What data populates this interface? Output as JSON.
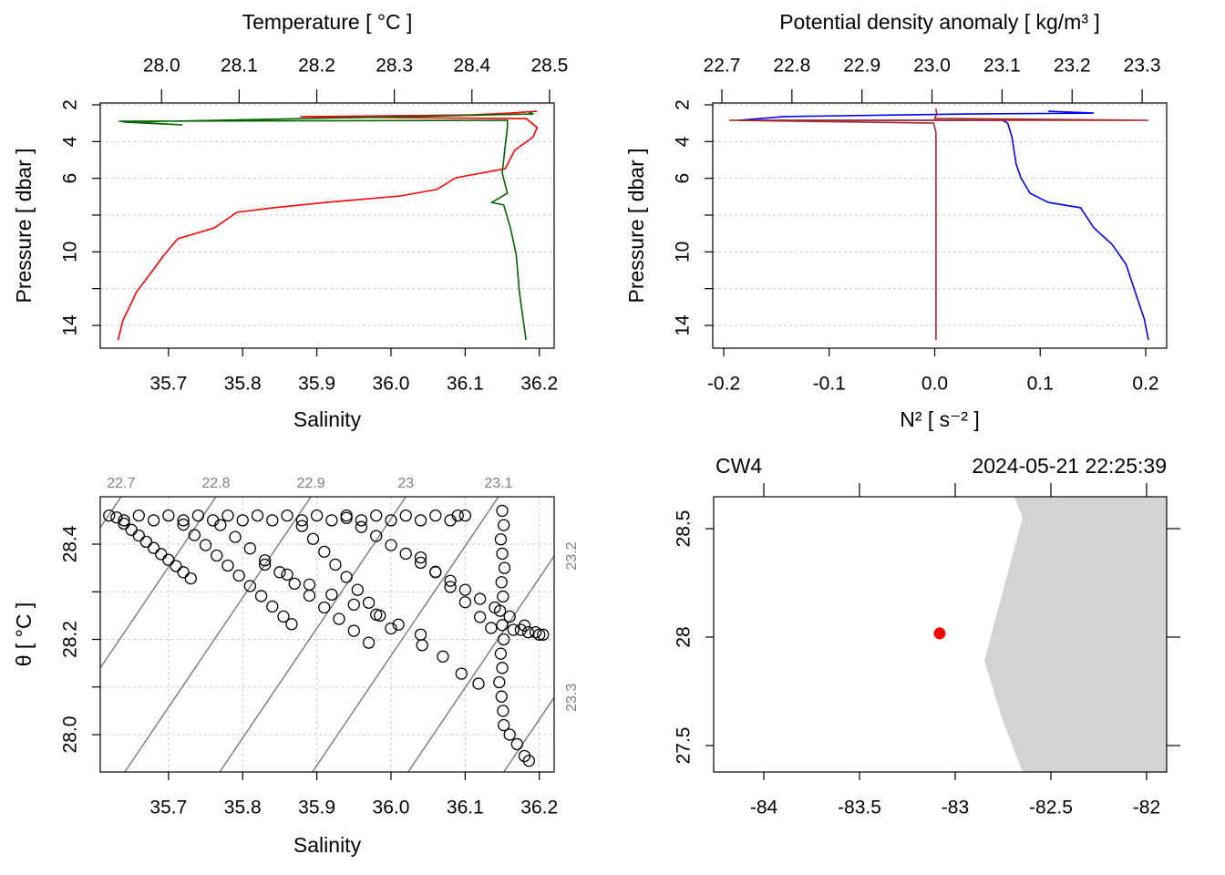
{
  "chart_data": [
    {
      "type": "profile",
      "x2label": "Temperature [ °C ]",
      "xlabel": "Salinity",
      "ylabel": "Pressure [ dbar ]",
      "ylim": [
        15.24,
        1.9
      ],
      "yticks": [
        2,
        4,
        6,
        10,
        14
      ],
      "yticks_minor": [
        8,
        12
      ],
      "x2lim": [
        27.921,
        28.506
      ],
      "x2ticks": [
        {
          "value": 28,
          "label": "28.0"
        },
        28.1,
        28.2,
        28.3,
        28.4,
        28.5
      ],
      "xlim": [
        35.608,
        36.22
      ],
      "xticks": [
        35.7,
        35.8,
        35.9,
        {
          "value": 36,
          "label": "36.0"
        },
        36.1,
        36.2
      ],
      "grid": true,
      "series": [
        {
          "axis": "x2",
          "color": "#ff0000",
          "pressure": [
            14.8,
            13.75,
            12.16,
            11.17,
            10.18,
            9.29,
            8.7,
            7.85,
            7.6,
            7.3,
            6.96,
            6.6,
            5.97,
            5.47,
            4.48,
            3.74,
            3.24,
            2.75,
            2.65,
            2.55,
            2.45,
            2.35
          ],
          "values": [
            27.944,
            27.95,
            27.968,
            27.986,
            28.003,
            28.021,
            28.068,
            28.097,
            28.144,
            28.214,
            28.308,
            28.355,
            28.379,
            28.443,
            28.455,
            28.479,
            28.484,
            28.47,
            28.179,
            28.4,
            28.449,
            28.484
          ]
        },
        {
          "axis": "x",
          "color": "#006400",
          "pressure": [
            14.79,
            12.17,
            10.18,
            8.69,
            7.45,
            7.31,
            6.81,
            5.72,
            4.23,
            3.24,
            2.84,
            2.89,
            3.09,
            2.94,
            2.5,
            2.4
          ],
          "values": [
            36.182,
            36.173,
            36.169,
            36.161,
            36.152,
            36.136,
            36.157,
            36.15,
            36.154,
            36.157,
            36.157,
            35.633,
            35.719,
            35.639,
            36.192,
            36.186
          ]
        }
      ]
    },
    {
      "type": "profile",
      "x2label": "Potential density anomaly [ kg/m³ ]",
      "xlabel": "N² [ s⁻² ]",
      "ylabel": "Pressure [ dbar ]",
      "ylim": [
        15.24,
        1.9
      ],
      "yticks": [
        2,
        4,
        6,
        10,
        14
      ],
      "yticks_minor": [
        8,
        12
      ],
      "x2lim": [
        22.687,
        23.335
      ],
      "x2ticks": [
        22.7,
        22.8,
        22.9,
        {
          "value": 23,
          "label": "23.0"
        },
        23.1,
        23.2,
        23.3
      ],
      "xlim": [
        -0.2104,
        0.2199
      ],
      "xticks": [
        -0.2,
        -0.1,
        {
          "value": 0,
          "label": "0.0"
        },
        0.1,
        0.2
      ],
      "grid": true,
      "series": [
        {
          "axis": "x2",
          "color": "#0000ff",
          "pressure": [
            14.79,
            13.65,
            12.17,
            10.68,
            9.59,
            8.69,
            7.6,
            7.31,
            6.81,
            5.97,
            5.22,
            3.73,
            2.99,
            2.84,
            2.84,
            2.64,
            2.5,
            2.45,
            2.35
          ],
          "values": [
            23.309,
            23.303,
            23.29,
            23.277,
            23.257,
            23.231,
            23.212,
            23.166,
            23.14,
            23.127,
            23.12,
            23.114,
            23.108,
            23.101,
            22.723,
            22.789,
            23.049,
            23.231,
            23.166
          ]
        },
        {
          "axis": "x",
          "color": "#a52a2a",
          "pressure": [
            14.79,
            3.5,
            2.99,
            2.84,
            2.84,
            2.74,
            2.5,
            2.2
          ],
          "values": [
            0.0012,
            0.0012,
            -0.001,
            -0.195,
            0.2026,
            0.0,
            0.002,
            0.001
          ]
        }
      ]
    },
    {
      "type": "ts",
      "xlabel": "Salinity",
      "ylabel": "θ [ °C ]",
      "xlim": [
        35.608,
        36.22
      ],
      "xticks": [
        35.7,
        35.8,
        35.9,
        {
          "value": 36,
          "label": "36.0"
        },
        36.1,
        36.2
      ],
      "ylim": [
        27.9215,
        28.4995
      ],
      "yticks": [
        {
          "value": 28,
          "label": "28.0"
        },
        28.2,
        28.4
      ],
      "yticks_minor": [
        28.1,
        28.3
      ],
      "grid": true,
      "isopycnals": [
        {
          "level": 22.7,
          "S": [
            35.608,
            35.636
          ],
          "theta": [
            28.4344,
            28.4995
          ]
        },
        {
          "level": 22.8,
          "S": [
            35.608,
            35.764
          ],
          "theta": [
            28.1397,
            28.4995
          ]
        },
        {
          "level": 22.9,
          "S": [
            35.641,
            35.892
          ],
          "theta": [
            27.9215,
            28.4995
          ]
        },
        {
          "level": 23,
          "S": [
            35.769,
            36.02
          ],
          "theta": [
            27.9215,
            28.4995
          ]
        },
        {
          "level": 23.1,
          "S": [
            35.894,
            36.145
          ],
          "theta": [
            27.9215,
            28.4995
          ]
        },
        {
          "level": 23.2,
          "S": [
            36.023,
            36.22
          ],
          "theta": [
            27.9215,
            28.375
          ]
        },
        {
          "level": 23.3,
          "S": [
            36.152,
            36.22
          ],
          "theta": [
            27.9215,
            28.078
          ]
        }
      ],
      "S": [
        35.62,
        35.64,
        35.66,
        35.68,
        35.7,
        35.72,
        35.74,
        35.76,
        35.78,
        35.8,
        35.82,
        35.84,
        35.86,
        35.88,
        35.9,
        35.92,
        35.94,
        35.96,
        35.98,
        36.0,
        36.02,
        36.04,
        36.06,
        36.08,
        36.09,
        36.1,
        35.63,
        35.64,
        35.65,
        35.66,
        35.67,
        35.68,
        35.69,
        35.7,
        35.71,
        35.72,
        35.73,
        35.72,
        35.735,
        35.75,
        35.765,
        35.78,
        35.795,
        35.81,
        35.825,
        35.84,
        35.855,
        35.866,
        35.77,
        35.79,
        35.81,
        35.83,
        35.85,
        35.87,
        35.89,
        35.91,
        35.93,
        35.95,
        35.97,
        35.88,
        35.895,
        35.91,
        35.925,
        35.94,
        35.955,
        35.97,
        35.985,
        36.0,
        35.94,
        35.96,
        35.98,
        36.0,
        36.02,
        36.04,
        36.06,
        36.08,
        36.1,
        36.12,
        36.14,
        36.16,
        36.18,
        36.2,
        36.04,
        36.06,
        36.08,
        36.1,
        36.12,
        36.135,
        35.83,
        35.86,
        35.89,
        35.92,
        35.95,
        35.98,
        36.01,
        36.04,
        36.07,
        36.095,
        36.118,
        36.15,
        36.152,
        36.148,
        36.15,
        36.153,
        36.149,
        36.151,
        36.147,
        36.15,
        36.152,
        36.148,
        36.15,
        36.146,
        36.149,
        36.151,
        36.152,
        36.16,
        36.17,
        36.18,
        36.186,
        36.165,
        36.175,
        36.185,
        36.195,
        36.205,
        36.042
      ],
      "theta": [
        28.46,
        28.45,
        28.46,
        28.45,
        28.46,
        28.45,
        28.46,
        28.45,
        28.46,
        28.45,
        28.46,
        28.45,
        28.46,
        28.45,
        28.46,
        28.45,
        28.46,
        28.45,
        28.46,
        28.45,
        28.46,
        28.45,
        28.46,
        28.45,
        28.46,
        28.46,
        28.456,
        28.443,
        28.43,
        28.418,
        28.405,
        28.392,
        28.379,
        28.367,
        28.354,
        28.341,
        28.328,
        28.441,
        28.419,
        28.398,
        28.376,
        28.355,
        28.334,
        28.312,
        28.291,
        28.269,
        28.248,
        28.232,
        28.44,
        28.415,
        28.391,
        28.366,
        28.341,
        28.317,
        28.292,
        28.267,
        28.243,
        28.218,
        28.193,
        28.438,
        28.411,
        28.384,
        28.357,
        28.331,
        28.304,
        28.277,
        28.25,
        28.223,
        28.455,
        28.436,
        28.417,
        28.398,
        28.38,
        28.361,
        28.342,
        28.323,
        28.304,
        28.285,
        28.267,
        28.248,
        28.229,
        28.21,
        28.372,
        28.341,
        28.31,
        28.278,
        28.247,
        28.224,
        28.357,
        28.336,
        28.315,
        28.294,
        28.273,
        28.252,
        28.231,
        28.21,
        28.164,
        28.128,
        28.107,
        28.47,
        28.44,
        28.41,
        28.38,
        28.35,
        28.32,
        28.29,
        28.26,
        28.23,
        28.2,
        28.17,
        28.14,
        28.11,
        28.08,
        28.05,
        28.02,
        28.0,
        27.98,
        27.955,
        27.945,
        28.22,
        28.22,
        28.215,
        28.215,
        28.21,
        28.188
      ]
    },
    {
      "type": "map",
      "station": {
        "name": "CW4",
        "lon": -83.081,
        "lat": 28.017,
        "color": "#ff0000"
      },
      "time": "2024-05-21 22:25:39",
      "xlim": [
        -84.262,
        -81.895
      ],
      "xticks": [
        -84,
        -83.5,
        -83,
        -82.5,
        -82
      ],
      "ylim": [
        27.378,
        28.647
      ],
      "yticks": [
        27.5,
        28,
        28.5
      ],
      "land_color": "#d3d3d3",
      "coastline": {
        "lon": [
          -82.691,
          -82.648,
          -82.848,
          -82.752,
          -82.648,
          -81.895,
          -81.895
        ],
        "lat": [
          28.647,
          28.55,
          27.891,
          27.618,
          27.378,
          27.378,
          28.647
        ]
      }
    }
  ]
}
